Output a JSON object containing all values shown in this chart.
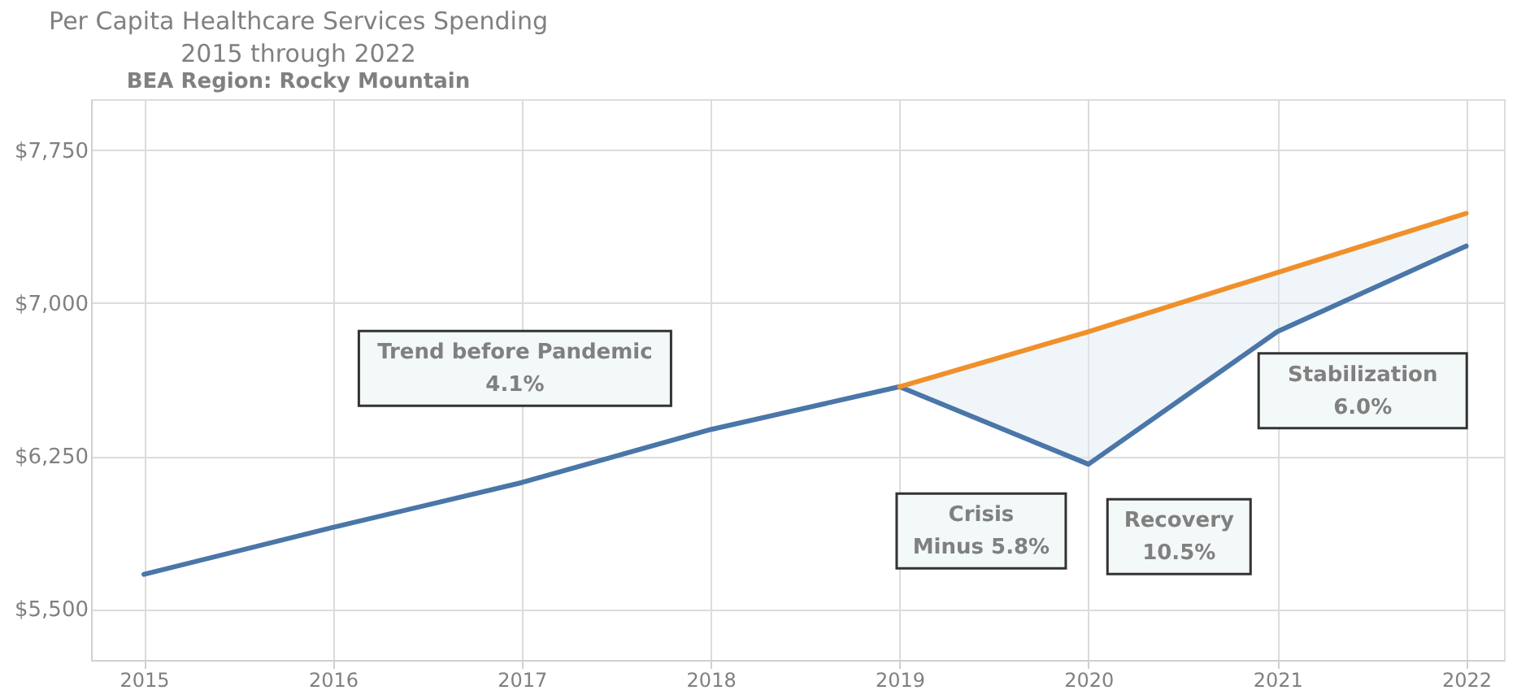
{
  "chart_data": {
    "type": "line",
    "title": "Per Capita Healthcare Services Spending\n2015 through 2022",
    "subtitle": "BEA Region: Rocky Mountain",
    "x": [
      2015,
      2016,
      2017,
      2018,
      2019,
      2020,
      2021,
      2022
    ],
    "series": [
      {
        "color": "#4a76a8",
        "values": [
          5670,
          5900,
          6120,
          6380,
          6590,
          6210,
          6860,
          7280
        ]
      },
      {
        "color": "#f0902a",
        "values": [
          null,
          null,
          null,
          null,
          6590,
          6860,
          7150,
          7440
        ],
        "lower": [
          null,
          null,
          null,
          null,
          6590,
          6210,
          6860,
          7280
        ],
        "upper": [
          null,
          null,
          null,
          null,
          6590,
          6860,
          7150,
          7440
        ]
      }
    ],
    "xlim": [
      2014.72,
      2022.2
    ],
    "xticks": [
      2015,
      2016,
      2017,
      2018,
      2019,
      2020,
      2021,
      2022
    ],
    "ylim": [
      5250,
      8000
    ],
    "yticks": [
      {
        "value": 5500,
        "label": "$5,500"
      },
      {
        "value": 6250,
        "label": "$6,250"
      },
      {
        "value": 7000,
        "label": "$7,000"
      },
      {
        "value": 7750,
        "label": "$7,750"
      }
    ],
    "grid": true,
    "line_style": "solid",
    "annotations": [
      "Trend before Pandemic\n4.1%",
      "Crisis\nMinus 5.8%",
      "Recovery\n10.5%",
      "Stabilization\n6.0%"
    ]
  }
}
